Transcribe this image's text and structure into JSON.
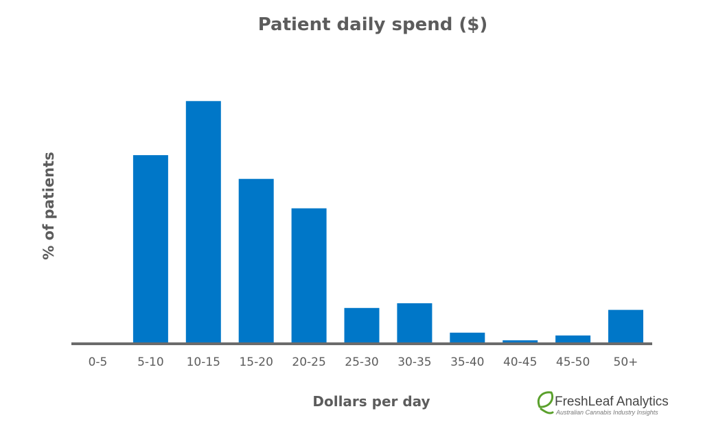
{
  "chart_data": {
    "type": "bar",
    "title": "Patient daily spend ($)",
    "xlabel": "Dollars per day",
    "ylabel": "% of patients",
    "categories": [
      "0-5",
      "5-10",
      "10-15",
      "15-20",
      "20-25",
      "25-30",
      "30-35",
      "35-40",
      "40-45",
      "45-50",
      "50+"
    ],
    "values": [
      0,
      19.8,
      25.5,
      17.3,
      14.2,
      3.7,
      4.2,
      1.1,
      0.3,
      0.8,
      3.5
    ],
    "ylim": [
      0,
      30
    ],
    "grid": false,
    "legend": "none",
    "bar_color": "#0077c8",
    "axis_color": "#6b6b6b"
  },
  "brand": {
    "name": "FreshLeaf Analytics",
    "tagline": "Australian Cannabis Industry Insights",
    "logo_icon": "leaf-icon",
    "logo_color": "#5aa02c"
  }
}
